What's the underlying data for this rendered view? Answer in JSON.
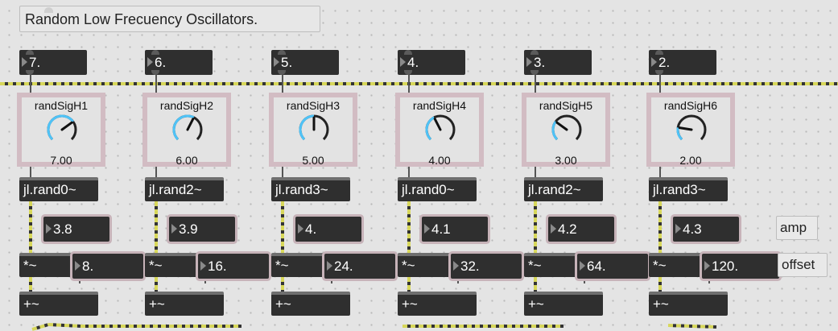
{
  "comment": "Random Low Frecuency Oscillators.",
  "side_labels": {
    "amp": "amp",
    "offset": "offset"
  },
  "colors": {
    "background": "#e4e4e4",
    "object": "#2f2f2f",
    "highlight": "#d2bcc3",
    "signal_cord": "#d7d75a",
    "dial_arc": "#4fc3f7"
  },
  "channels": [
    {
      "rate": "7.",
      "dial_label": "randSigH1",
      "dial_value": "7.00",
      "dial_fraction": 0.7,
      "generator": "jl.rand0~",
      "amp": "3.8",
      "multiply": "*~",
      "offset": "8.",
      "add": "+~"
    },
    {
      "rate": "6.",
      "dial_label": "randSigH2",
      "dial_value": "6.00",
      "dial_fraction": 0.6,
      "generator": "jl.rand2~",
      "amp": "3.9",
      "multiply": "*~",
      "offset": "16.",
      "add": "+~"
    },
    {
      "rate": "5.",
      "dial_label": "randSigH3",
      "dial_value": "5.00",
      "dial_fraction": 0.5,
      "generator": "jl.rand3~",
      "amp": "4.",
      "multiply": "*~",
      "offset": "24.",
      "add": "+~"
    },
    {
      "rate": "4.",
      "dial_label": "randSigH4",
      "dial_value": "4.00",
      "dial_fraction": 0.4,
      "generator": "jl.rand0~",
      "amp": "4.1",
      "multiply": "*~",
      "offset": "32.",
      "add": "+~"
    },
    {
      "rate": "3.",
      "dial_label": "randSigH5",
      "dial_value": "3.00",
      "dial_fraction": 0.3,
      "generator": "jl.rand2~",
      "amp": "4.2",
      "multiply": "*~",
      "offset": "64.",
      "add": "+~"
    },
    {
      "rate": "2.",
      "dial_label": "randSigH6",
      "dial_value": "2.00",
      "dial_fraction": 0.2,
      "generator": "jl.rand3~",
      "amp": "4.3",
      "multiply": "*~",
      "offset": "120.",
      "add": "+~"
    }
  ]
}
